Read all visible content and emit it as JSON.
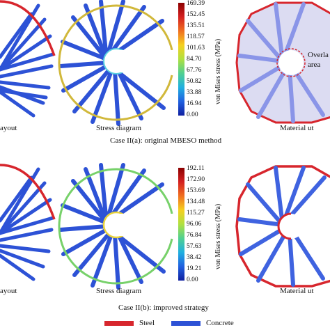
{
  "colors": {
    "steel": "#d7262d",
    "concrete": "#2d52d6",
    "overlap": "#d7262d",
    "outline_a": "#d1b83a",
    "outline_b": "#77d16a"
  },
  "row_a": {
    "panel_labels": [
      "ayout",
      "Stress diagram",
      "Material ut"
    ],
    "case_caption": "Case II(a): original MBESO method",
    "colorbar_title": "von Mises stress (MPa)",
    "colorbar_ticks": [
      "169.39",
      "152.45",
      "135.51",
      "118.57",
      "101.63",
      "84.70",
      "67.76",
      "50.82",
      "33.88",
      "16.94",
      "0.00"
    ],
    "overlap_label": [
      "Overla",
      "area"
    ]
  },
  "row_b": {
    "panel_labels": [
      "ayout",
      "Stress diagram",
      "Material ut"
    ],
    "case_caption": "Case II(b): improved strategy",
    "colorbar_title": "von Mises stress (MPa)",
    "colorbar_ticks": [
      "192.11",
      "172.90",
      "153.69",
      "134.48",
      "115.27",
      "96.06",
      "76.84",
      "57.63",
      "38.42",
      "19.21",
      "0.00"
    ]
  },
  "legend": {
    "items": [
      {
        "label": "Steel",
        "color": "#d7262d"
      },
      {
        "label": "Concrete",
        "color": "#2d52d6"
      }
    ]
  }
}
